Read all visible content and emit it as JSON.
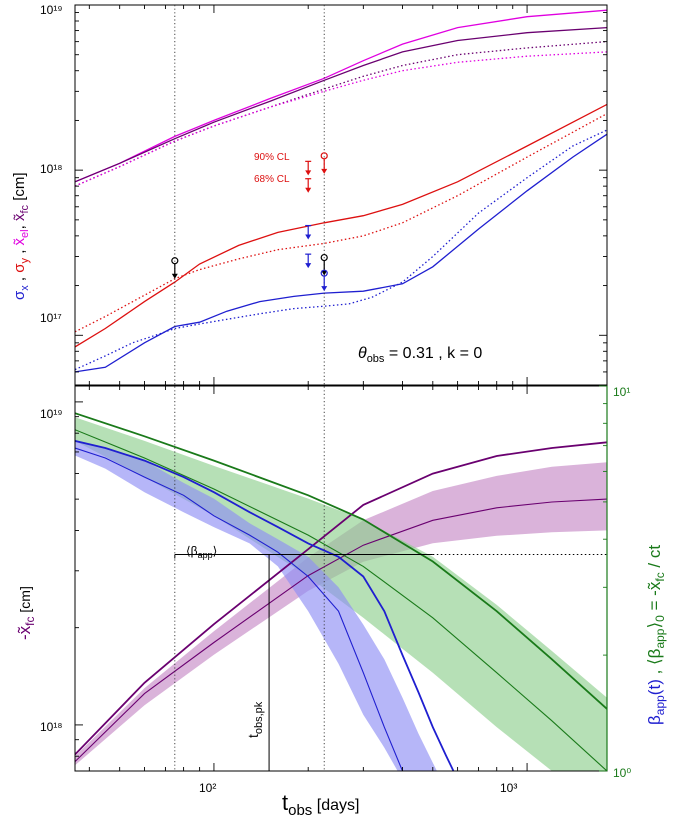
{
  "colors": {
    "blue": "#1f1fd0",
    "red": "#dd1010",
    "magenta": "#e000e0",
    "purple": "#6a0070",
    "green": "#1a7a1a",
    "blue_band": "#8f8ff5",
    "green_band": "#8fd08f",
    "purple_band": "#c68ac6",
    "black": "#000000"
  },
  "chart_data": [
    {
      "type": "line",
      "panel": "top",
      "xlabel": "",
      "xscale": "log",
      "yscale": "log",
      "xlim": [
        36,
        1800
      ],
      "ylim": [
        5e+16,
        1e+19
      ],
      "y_ticks": [
        "10¹⁹",
        "10¹⁸",
        "10¹⁷"
      ],
      "y_tick_values": [
        1e+19,
        1e+18,
        1e+17
      ],
      "ylabel_parts": [
        "σ",
        "x",
        " , ",
        "σ",
        "y",
        " , ",
        "x̃",
        "el",
        ", ",
        "x̃",
        "fc",
        "   [cm]"
      ],
      "annotation": {
        "theta": "θ",
        "sub": "obs",
        "rest": " = 0.31 ,  k = 0"
      },
      "cl_labels": [
        "90% CL",
        "68% CL"
      ],
      "vlines": [
        75,
        225
      ],
      "series": [
        {
          "color": "magenta",
          "style": "solid",
          "x": [
            36,
            50,
            75,
            100,
            150,
            225,
            300,
            400,
            600,
            1000,
            1800
          ],
          "y": [
            8.5e+17,
            1.1e+18,
            1.6e+18,
            2e+18,
            2.7e+18,
            3.6e+18,
            4.6e+18,
            5.8e+18,
            7.3e+18,
            8.5e+18,
            9.3e+18
          ]
        },
        {
          "color": "purple",
          "style": "solid",
          "x": [
            36,
            50,
            75,
            100,
            150,
            225,
            300,
            400,
            600,
            1000,
            1800
          ],
          "y": [
            8.5e+17,
            1.1e+18,
            1.55e+18,
            1.95e+18,
            2.6e+18,
            3.5e+18,
            4.3e+18,
            5.2e+18,
            6.1e+18,
            6.8e+18,
            7.3e+18
          ]
        },
        {
          "color": "purple",
          "style": "dotted",
          "x": [
            36,
            50,
            75,
            100,
            150,
            225,
            300,
            400,
            600,
            1000,
            1800
          ],
          "y": [
            8e+17,
            1.05e+18,
            1.5e+18,
            1.85e+18,
            2.4e+18,
            3.1e+18,
            3.7e+18,
            4.3e+18,
            5e+18,
            5.5e+18,
            6e+18
          ]
        },
        {
          "color": "magenta",
          "style": "dotted",
          "x": [
            36,
            50,
            75,
            100,
            150,
            225,
            300,
            400,
            600,
            1000,
            1800
          ],
          "y": [
            8e+17,
            1.05e+18,
            1.5e+18,
            1.85e+18,
            2.4e+18,
            3e+18,
            3.5e+18,
            4e+18,
            4.5e+18,
            4.9e+18,
            5.2e+18
          ]
        },
        {
          "color": "red",
          "style": "solid",
          "x": [
            36,
            45,
            60,
            75,
            90,
            120,
            160,
            225,
            300,
            400,
            600,
            1000,
            1800
          ],
          "y": [
            8.5e+16,
            1.1e+17,
            1.6e+17,
            2.1e+17,
            2.7e+17,
            3.5e+17,
            4.2e+17,
            4.8e+17,
            5.3e+17,
            6.2e+17,
            8.5e+17,
            1.4e+18,
            2.5e+18
          ]
        },
        {
          "color": "red",
          "style": "dotted",
          "x": [
            36,
            45,
            60,
            75,
            90,
            120,
            160,
            225,
            300,
            400,
            600,
            1000,
            1800
          ],
          "y": [
            1.05e+17,
            1.3e+17,
            1.75e+17,
            2.2e+17,
            2.5e+17,
            2.9e+17,
            3.3e+17,
            3.6e+17,
            4e+17,
            4.8e+17,
            7e+17,
            1.2e+18,
            2.2e+18
          ]
        },
        {
          "color": "blue",
          "style": "solid",
          "x": [
            36,
            45,
            60,
            75,
            90,
            110,
            140,
            180,
            225,
            300,
            400,
            500,
            700,
            1000,
            1400,
            1800
          ],
          "y": [
            6e+16,
            6.4e+16,
            9e+16,
            1.13e+17,
            1.2e+17,
            1.4e+17,
            1.6e+17,
            1.72e+17,
            1.8e+17,
            1.85e+17,
            2.05e+17,
            2.6e+17,
            4.4e+17,
            7.5e+17,
            1.2e+18,
            1.65e+18
          ]
        },
        {
          "color": "blue",
          "style": "dotted",
          "x": [
            36,
            45,
            55,
            65,
            75,
            90,
            110,
            140,
            180,
            225,
            270,
            320,
            400,
            500,
            700,
            1000,
            1400,
            1800
          ],
          "y": [
            6.2e+16,
            7.5e+16,
            9e+16,
            1e+17,
            1.1e+17,
            1.17e+17,
            1.25e+17,
            1.35e+17,
            1.45e+17,
            1.5e+17,
            1.55e+17,
            1.7e+17,
            2.1e+17,
            3e+17,
            5.5e+17,
            9e+17,
            1.4e+18,
            1.75e+18
          ]
        }
      ],
      "markers": [
        {
          "x": 75,
          "y": 2.2e+17,
          "color": "black",
          "kind": "circle-arrow"
        },
        {
          "x": 225,
          "y": 2.3e+17,
          "color": "black",
          "kind": "circle-arrow"
        },
        {
          "x": 225,
          "y": 9.5e+17,
          "color": "red",
          "kind": "circle-arrow"
        },
        {
          "x": 225,
          "y": 1.85e+17,
          "color": "blue",
          "kind": "circle-arrow"
        },
        {
          "x": 200,
          "y": 9.3e+17,
          "color": "red",
          "kind": "limit"
        },
        {
          "x": 200,
          "y": 7.3e+17,
          "color": "red",
          "kind": "limit"
        },
        {
          "x": 200,
          "y": 3.8e+17,
          "color": "blue",
          "kind": "limit"
        },
        {
          "x": 200,
          "y": 2.55e+17,
          "color": "blue",
          "kind": "limit"
        }
      ]
    },
    {
      "type": "area",
      "panel": "bottom",
      "xscale": "log",
      "yscale": "log",
      "xlim": [
        36,
        1800
      ],
      "ylim": [
        7.2e+17,
        1.12e+19
      ],
      "y2lim": [
        1,
        10
      ],
      "x_ticks": [
        "10²",
        "10³"
      ],
      "x_tick_values": [
        100,
        1000
      ],
      "xlabel_main": "t",
      "xlabel_sub": "obs",
      "xlabel_units": " [days]",
      "y_ticks": [
        "10¹⁹",
        "10¹⁸"
      ],
      "y_tick_values": [
        1e+19,
        1e+18
      ],
      "y2_ticks": [
        "10¹",
        "10⁰"
      ],
      "y2_tick_values": [
        10,
        1
      ],
      "ylabel_parts": [
        "-x̃",
        "fc",
        " [cm]"
      ],
      "y2label_blue_parts": [
        "β",
        "app",
        "(t)"
      ],
      "y2label_green_parts": [
        " ,  ⟨β",
        "app",
        "⟩",
        "0",
        " = -x̃",
        "fc",
        " / ct"
      ],
      "beta_label": {
        "text": "⟨β",
        "sub": "app",
        "close": "⟩"
      },
      "tpk_label": {
        "text": "t",
        "sub": "obs,pk"
      },
      "beta_line": {
        "x_start": 75,
        "x_end": 1800,
        "value": 3.65,
        "axis": "y2",
        "solid_until": 500
      },
      "tpk": {
        "x": 150,
        "value": 3.65
      },
      "vlines": [
        75,
        225
      ],
      "bands": [
        {
          "color": "purple_band",
          "axis": "y",
          "x": [
            36,
            60,
            100,
            200,
            300,
            500,
            800,
            1200,
            1800
          ],
          "low": [
            7.5e+17,
            1.15e+18,
            1.65e+18,
            2.6e+18,
            3.2e+18,
            3.65e+18,
            3.85e+18,
            3.95e+18,
            4e+18
          ],
          "high": [
            8e+17,
            1.3e+18,
            1.95e+18,
            3.3e+18,
            4.3e+18,
            5.3e+18,
            5.9e+18,
            6.3e+18,
            6.5e+18
          ]
        },
        {
          "color": "green_band",
          "axis": "y2",
          "x": [
            36,
            60,
            100,
            200,
            300,
            500,
            800,
            1200,
            1800
          ],
          "low": [
            7.2,
            5.8,
            4.6,
            3.2,
            2.5,
            1.8,
            1.3,
            1.0,
            0.78
          ],
          "high": [
            8.3,
            7.2,
            6.2,
            5.1,
            4.5,
            3.6,
            2.7,
            2.05,
            1.55
          ]
        },
        {
          "color": "blue_band",
          "axis": "y2",
          "x": [
            36,
            45,
            60,
            80,
            100,
            130,
            160,
            200,
            250,
            300,
            350,
            400,
            450,
            500,
            550,
            600
          ],
          "low": [
            6.6,
            6.1,
            5.3,
            4.7,
            4.3,
            3.9,
            3.4,
            2.6,
            1.9,
            1.4,
            1.15,
            0.95,
            0.85,
            0.8,
            0.76,
            0.73
          ],
          "high": [
            7.2,
            6.9,
            6.4,
            5.6,
            5.1,
            4.4,
            4.0,
            3.6,
            3.0,
            2.4,
            1.95,
            1.55,
            1.25,
            1.05,
            0.9,
            0.8
          ]
        }
      ],
      "series": [
        {
          "color": "purple",
          "style": "solid",
          "axis": "y",
          "x": [
            36,
            60,
            100,
            200,
            300,
            500,
            800,
            1200,
            1800
          ],
          "y": [
            8.1e+17,
            1.35e+18,
            2.05e+18,
            3.5e+18,
            4.8e+18,
            6e+18,
            6.8e+18,
            7.2e+18,
            7.5e+18
          ]
        },
        {
          "color": "purple",
          "style": "solid",
          "axis": "y",
          "x": [
            36,
            60,
            100,
            200,
            300,
            500,
            800,
            1200,
            1800
          ],
          "y": [
            7.7e+17,
            1.25e+18,
            1.8e+18,
            2.9e+18,
            3.6e+18,
            4.3e+18,
            4.7e+18,
            4.9e+18,
            5e+18
          ]
        },
        {
          "color": "green",
          "style": "solid",
          "axis": "y2",
          "x": [
            36,
            60,
            100,
            200,
            300,
            500,
            800,
            1200,
            1800
          ],
          "y": [
            8.5,
            7.4,
            6.4,
            5.2,
            4.5,
            3.5,
            2.6,
            1.95,
            1.45
          ]
        },
        {
          "color": "green",
          "style": "solid",
          "axis": "y2",
          "x": [
            36,
            60,
            100,
            200,
            300,
            500,
            800,
            1200,
            1800
          ],
          "y": [
            7.7,
            6.5,
            5.4,
            4.1,
            3.4,
            2.5,
            1.8,
            1.35,
            1.0
          ]
        },
        {
          "color": "blue",
          "style": "solid",
          "axis": "y2",
          "x": [
            36,
            45,
            60,
            80,
            100,
            130,
            160,
            200,
            250,
            300,
            350,
            400,
            450,
            500,
            550,
            600,
            620
          ],
          "y": [
            7.2,
            6.9,
            6.4,
            5.8,
            5.3,
            4.7,
            4.3,
            3.9,
            3.6,
            3.2,
            2.6,
            2,
            1.6,
            1.3,
            1.1,
            0.95,
            0.9
          ]
        },
        {
          "color": "blue",
          "style": "solid",
          "axis": "y2",
          "x": [
            36,
            45,
            60,
            80,
            100,
            130,
            160,
            200,
            250,
            300,
            350,
            400,
            430
          ],
          "y": [
            6.9,
            6.5,
            5.8,
            5.2,
            4.6,
            4.1,
            3.7,
            3.2,
            2.6,
            1.8,
            1.3,
            1.0,
            0.9
          ]
        }
      ]
    }
  ]
}
